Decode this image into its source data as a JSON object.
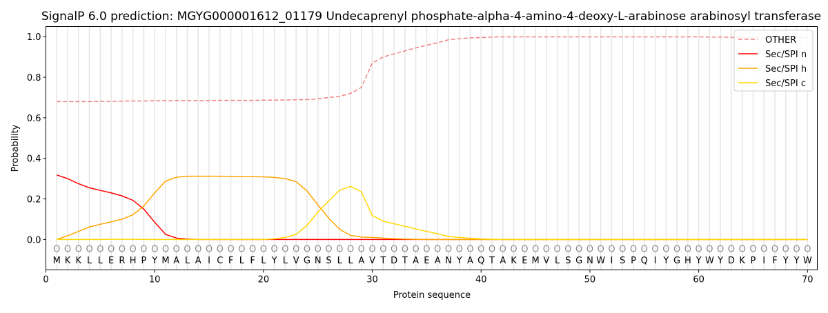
{
  "chart_data": {
    "type": "line",
    "title": "SignalP 6.0 prediction: MGYG000001612_01179 Undecaprenyl phosphate-alpha-4-amino-4-deoxy-L-arabinose arabinosyl transferase",
    "xlabel": "Protein sequence",
    "ylabel": "Probability",
    "xlim": [
      0,
      70.9
    ],
    "ylim": [
      -0.15,
      1.05
    ],
    "xticks": [
      0,
      10,
      20,
      30,
      40,
      50,
      60,
      70
    ],
    "yticks": [
      0.0,
      0.2,
      0.4,
      0.6,
      0.8,
      1.0
    ],
    "ytick_labels": [
      "0.0",
      "0.2",
      "0.4",
      "0.6",
      "0.8",
      "1.0"
    ],
    "legend_position": "top-right",
    "sequence": [
      "M",
      "K",
      "K",
      "L",
      "L",
      "E",
      "R",
      "H",
      "P",
      "Y",
      "M",
      "A",
      "L",
      "A",
      "I",
      "C",
      "F",
      "L",
      "F",
      "L",
      "Y",
      "L",
      "V",
      "G",
      "N",
      "S",
      "L",
      "L",
      "A",
      "V",
      "T",
      "D",
      "T",
      "A",
      "E",
      "A",
      "N",
      "Y",
      "A",
      "Q",
      "T",
      "A",
      "K",
      "E",
      "M",
      "V",
      "L",
      "S",
      "G",
      "N",
      "W",
      "I",
      "S",
      "P",
      "Q",
      "I",
      "Y",
      "G",
      "H",
      "Y",
      "W",
      "Y",
      "D",
      "K",
      "P",
      "I",
      "F",
      "Y",
      "Y",
      "W"
    ],
    "marker_label": "O",
    "series": [
      {
        "name": "OTHER",
        "color": "#f08080",
        "dash": true,
        "values": [
          0.68,
          0.68,
          0.68,
          0.68,
          0.681,
          0.681,
          0.682,
          0.683,
          0.683,
          0.684,
          0.684,
          0.685,
          0.685,
          0.685,
          0.685,
          0.686,
          0.686,
          0.686,
          0.686,
          0.687,
          0.687,
          0.688,
          0.689,
          0.69,
          0.693,
          0.7,
          0.706,
          0.72,
          0.75,
          0.87,
          0.9,
          0.915,
          0.93,
          0.945,
          0.958,
          0.97,
          0.985,
          0.99,
          0.994,
          0.996,
          0.998,
          0.999,
          0.999,
          0.999,
          0.999,
          0.999,
          0.999,
          0.999,
          0.999,
          0.999,
          0.999,
          0.999,
          0.999,
          0.999,
          0.999,
          0.999,
          0.999,
          0.999,
          0.999,
          0.999,
          0.998,
          0.998,
          0.997,
          0.996,
          0.995,
          0.995,
          0.995,
          0.995,
          0.996,
          0.996
        ]
      },
      {
        "name": "Sec/SPI n",
        "color": "#ff0000",
        "dash": false,
        "values": [
          0.318,
          0.3,
          0.275,
          0.255,
          0.242,
          0.23,
          0.215,
          0.193,
          0.15,
          0.085,
          0.025,
          0.007,
          0.002,
          0,
          0,
          0,
          0,
          0,
          0,
          0,
          0,
          0,
          0,
          0,
          0,
          0,
          0,
          0,
          0,
          0,
          0,
          0,
          0,
          0,
          0,
          0,
          0,
          0,
          0,
          0,
          0,
          0,
          0,
          0,
          0,
          0,
          0,
          0,
          0,
          0,
          0,
          0,
          0,
          0,
          0,
          0,
          0,
          0,
          0,
          0,
          0,
          0,
          0,
          0,
          0,
          0,
          0,
          0,
          0,
          0
        ]
      },
      {
        "name": "Sec/SPI h",
        "color": "#ffa500",
        "dash": false,
        "values": [
          0,
          0.018,
          0.04,
          0.062,
          0.075,
          0.087,
          0.1,
          0.122,
          0.165,
          0.23,
          0.288,
          0.307,
          0.312,
          0.312,
          0.312,
          0.312,
          0.311,
          0.31,
          0.31,
          0.309,
          0.306,
          0.3,
          0.285,
          0.24,
          0.17,
          0.105,
          0.05,
          0.02,
          0.012,
          0.01,
          0.007,
          0.004,
          0.002,
          0.001,
          0,
          0,
          0,
          0,
          0,
          0,
          0,
          0,
          0,
          0,
          0,
          0,
          0,
          0,
          0,
          0,
          0,
          0,
          0,
          0,
          0,
          0,
          0,
          0,
          0,
          0,
          0,
          0,
          0,
          0,
          0,
          0,
          0,
          0,
          0,
          0
        ]
      },
      {
        "name": "Sec/SPI c",
        "color": "#ffd700",
        "dash": false,
        "values": [
          0,
          0,
          0,
          0,
          0,
          0.001,
          0.001,
          0.001,
          0,
          0,
          0,
          0,
          0,
          0,
          0,
          0,
          0,
          0,
          0,
          0,
          0.003,
          0.01,
          0.025,
          0.07,
          0.135,
          0.19,
          0.243,
          0.262,
          0.235,
          0.118,
          0.09,
          0.078,
          0.065,
          0.052,
          0.04,
          0.028,
          0.015,
          0.01,
          0.006,
          0.003,
          0.001,
          0,
          0,
          0,
          0,
          0,
          0,
          0,
          0,
          0,
          0,
          0,
          0,
          0,
          0,
          0,
          0,
          0,
          0,
          0,
          0,
          0,
          0,
          0,
          0,
          0,
          0,
          0,
          0,
          0
        ]
      }
    ]
  }
}
